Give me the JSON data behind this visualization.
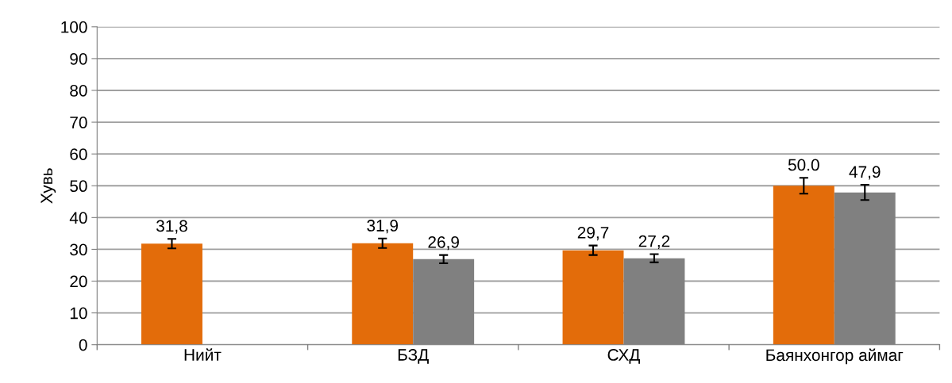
{
  "chart_data": {
    "type": "bar",
    "ylabel": "Хувь",
    "categories": [
      "Нийт",
      "БЗД",
      "СХД",
      "Баянхонгор аймаг"
    ],
    "series": [
      {
        "color": "#e36c0a",
        "values": [
          31.8,
          31.9,
          29.7,
          50.0
        ],
        "errors": [
          1.5,
          1.5,
          1.5,
          2.5
        ],
        "value_labels": [
          "31,8",
          "31,9",
          "29,7",
          "50.0"
        ]
      },
      {
        "color": "#808080",
        "values": [
          null,
          26.9,
          27.2,
          47.9
        ],
        "errors": [
          null,
          1.3,
          1.3,
          2.4
        ],
        "value_labels": [
          null,
          "26,9",
          "27,2",
          "47,9"
        ]
      }
    ],
    "ylim": [
      0,
      100
    ],
    "yticks": [
      0,
      10,
      20,
      30,
      40,
      50,
      60,
      70,
      80,
      90,
      100
    ],
    "grid": "y",
    "legend": false
  }
}
